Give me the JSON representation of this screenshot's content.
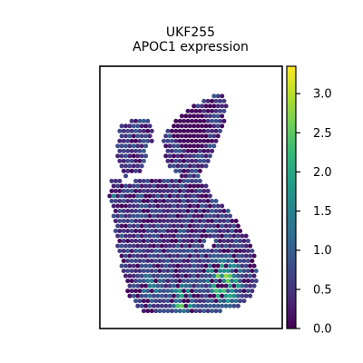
{
  "chart_data": {
    "type": "scatter",
    "plot_kind": "spatial-spot-map",
    "title": "UKF255",
    "subtitle": "APOC1 expression",
    "xlabel": "",
    "ylabel": "",
    "axes_ticks": false,
    "grid": false,
    "legend": "colorbar-right",
    "colormap": "viridis",
    "colormap_stops": [
      "#440154",
      "#482878",
      "#3e4989",
      "#31688e",
      "#26828e",
      "#1f9e89",
      "#35b779",
      "#6ece58",
      "#b5de2b",
      "#fde725"
    ],
    "colorbar": {
      "range": [
        0.0,
        3.35
      ],
      "ticks": [
        0.0,
        0.5,
        1.0,
        1.5,
        2.0,
        2.5,
        3.0
      ],
      "tick_labels": [
        "0.0",
        "0.5",
        "1.0",
        "1.5",
        "2.0",
        "2.5",
        "3.0"
      ]
    },
    "xlim": [
      0,
      100
    ],
    "ylim": [
      0,
      100
    ],
    "spot_spacing": 2.2,
    "tissue_regions": [
      {
        "name": "left-lobe",
        "polygon": [
          [
            12,
            78
          ],
          [
            18,
            80
          ],
          [
            26,
            81
          ],
          [
            30,
            76
          ],
          [
            27,
            66
          ],
          [
            22,
            60
          ],
          [
            14,
            58
          ],
          [
            10,
            63
          ],
          [
            9,
            71
          ]
        ]
      },
      {
        "name": "top-middle",
        "polygon": [
          [
            36,
            75
          ],
          [
            44,
            81
          ],
          [
            52,
            86
          ],
          [
            60,
            88
          ],
          [
            67,
            90
          ],
          [
            70,
            86
          ],
          [
            68,
            78
          ],
          [
            64,
            72
          ],
          [
            60,
            64
          ],
          [
            55,
            58
          ],
          [
            47,
            57
          ],
          [
            38,
            62
          ],
          [
            34,
            69
          ]
        ]
      },
      {
        "name": "main-body",
        "polygon": [
          [
            6,
            57
          ],
          [
            14,
            56
          ],
          [
            28,
            57
          ],
          [
            42,
            58
          ],
          [
            54,
            57
          ],
          [
            58,
            56
          ],
          [
            60,
            52
          ],
          [
            66,
            48
          ],
          [
            72,
            44
          ],
          [
            80,
            36
          ],
          [
            85,
            28
          ],
          [
            87,
            21
          ],
          [
            84,
            13
          ],
          [
            76,
            8
          ],
          [
            62,
            6
          ],
          [
            40,
            5
          ],
          [
            24,
            6
          ],
          [
            16,
            12
          ],
          [
            13,
            20
          ],
          [
            10,
            30
          ],
          [
            8,
            40
          ],
          [
            5,
            50
          ]
        ]
      }
    ],
    "holes": [
      {
        "name": "left-gap",
        "center": [
          31,
          67
        ],
        "radius": 5
      },
      {
        "name": "dark-pocket",
        "center": [
          60,
          32
        ],
        "radius": 2.5
      }
    ],
    "expression_hotspots": [
      {
        "center": [
          68,
          18
        ],
        "radius": 16,
        "peak": 2.6
      },
      {
        "center": [
          45,
          10
        ],
        "radius": 12,
        "peak": 2.3
      },
      {
        "center": [
          6,
          50
        ],
        "radius": 4,
        "peak": 2.0
      },
      {
        "center": [
          28,
          17
        ],
        "radius": 11,
        "peak": 1.6
      }
    ],
    "background_level": 0.55,
    "dark_zone": {
      "center": [
        50,
        76
      ],
      "radius": 9,
      "level": 0.1
    }
  }
}
